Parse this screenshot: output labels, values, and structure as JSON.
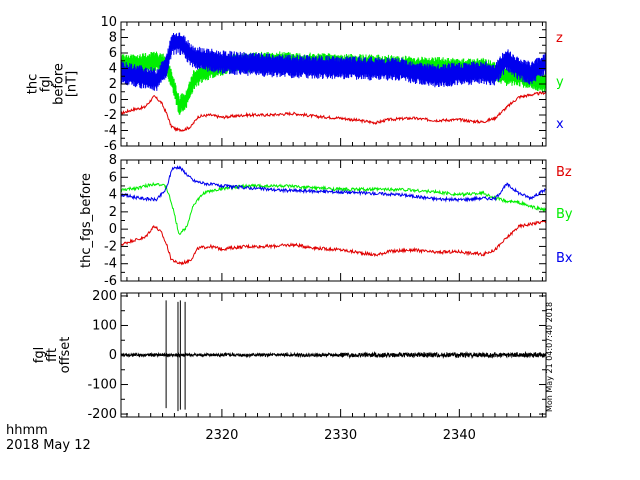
{
  "footer": {
    "line1": "hhmm",
    "line2": "2018 May 12"
  },
  "timestamp": "Mon May 21 04:07:40 2018",
  "colors": {
    "red": "#e00000",
    "green": "#00ee00",
    "blue": "#0000ee",
    "black": "#000000"
  },
  "chart_data": [
    {
      "type": "line",
      "ylabel_lines": [
        "thc",
        "fgl",
        "before",
        "[nT]"
      ],
      "ylim": [
        -6,
        10
      ],
      "yticks": [
        -6,
        -4,
        -2,
        0,
        2,
        4,
        6,
        8,
        10
      ],
      "xlim": [
        2311.5,
        2347.3
      ],
      "xticks": [
        2320,
        2330,
        2340
      ],
      "series": [
        {
          "name": "z",
          "color": "#e00000",
          "x": [
            2311.5,
            2312.5,
            2313.5,
            2314.3,
            2314.9,
            2315.4,
            2315.7,
            2316.2,
            2316.8,
            2317.4,
            2318,
            2319,
            2320,
            2322,
            2324,
            2326,
            2328,
            2330,
            2331.5,
            2333,
            2334,
            2336,
            2338,
            2340,
            2341,
            2342,
            2343,
            2344,
            2345,
            2346,
            2347.3
          ],
          "y": [
            -1.8,
            -1.3,
            -1.0,
            0.4,
            -0.4,
            -2.0,
            -3.4,
            -3.9,
            -3.9,
            -3.5,
            -2.2,
            -2.0,
            -2.3,
            -2.0,
            -2.0,
            -1.8,
            -2.2,
            -2.4,
            -2.7,
            -3.0,
            -2.6,
            -2.4,
            -2.7,
            -2.6,
            -2.8,
            -2.9,
            -2.4,
            -1.0,
            0.3,
            0.6,
            0.9
          ]
        },
        {
          "name": "y",
          "color": "#00ee00",
          "x": [
            2311.5,
            2313,
            2314.5,
            2315.3,
            2315.8,
            2316.4,
            2317,
            2317.6,
            2318.5,
            2320,
            2322,
            2325,
            2330,
            2335,
            2338,
            2340,
            2342,
            2343,
            2344,
            2345,
            2346,
            2347.3
          ],
          "y": [
            4.5,
            4.6,
            4.9,
            4.5,
            2.5,
            -0.8,
            0.0,
            2.5,
            3.6,
            4.4,
            4.8,
            4.9,
            4.6,
            4.4,
            4.2,
            4.0,
            4.1,
            3.6,
            3.0,
            3.0,
            2.6,
            2.2
          ],
          "band": 1.2
        },
        {
          "name": "x",
          "color": "#0000ee",
          "x": [
            2311.5,
            2313,
            2314.5,
            2315.3,
            2315.8,
            2316.4,
            2317,
            2317.6,
            2318.5,
            2320,
            2322,
            2325,
            2330,
            2335,
            2338,
            2340,
            2342,
            2343,
            2344,
            2345,
            2346,
            2347.3
          ],
          "y": [
            3.4,
            3.0,
            2.5,
            4.2,
            7.2,
            7.4,
            6.5,
            5.5,
            5.2,
            4.8,
            4.6,
            4.3,
            4.1,
            3.9,
            3.0,
            3.3,
            3.5,
            3.2,
            5.2,
            4.0,
            3.4,
            4.6
          ],
          "band": 1.4
        }
      ]
    },
    {
      "type": "line",
      "ylabel": "thc_fgs_before",
      "ylim": [
        -6,
        8
      ],
      "yticks": [
        -6,
        -4,
        -2,
        0,
        2,
        4,
        6,
        8
      ],
      "xlim": [
        2311.5,
        2347.3
      ],
      "xticks": [
        2320,
        2330,
        2340
      ],
      "series": [
        {
          "name": "Bz",
          "color": "#e00000",
          "x": [
            2311.5,
            2312.5,
            2313.5,
            2314.3,
            2314.9,
            2315.4,
            2315.7,
            2316.2,
            2316.8,
            2317.4,
            2318,
            2319,
            2320,
            2322,
            2324,
            2326,
            2328,
            2330,
            2331.5,
            2333,
            2334,
            2336,
            2338,
            2340,
            2341,
            2342,
            2343,
            2344,
            2345,
            2346,
            2347.3
          ],
          "y": [
            -1.8,
            -1.3,
            -1.0,
            0.4,
            -0.4,
            -2.0,
            -3.4,
            -3.9,
            -3.9,
            -3.5,
            -2.2,
            -2.0,
            -2.3,
            -2.0,
            -2.0,
            -1.8,
            -2.2,
            -2.4,
            -2.7,
            -3.0,
            -2.6,
            -2.4,
            -2.7,
            -2.6,
            -2.8,
            -2.9,
            -2.4,
            -1.0,
            0.3,
            0.6,
            0.9
          ]
        },
        {
          "name": "By",
          "color": "#00ee00",
          "x": [
            2311.5,
            2313,
            2314.5,
            2315.3,
            2315.8,
            2316.4,
            2317,
            2317.6,
            2318.5,
            2320,
            2322,
            2325,
            2330,
            2335,
            2338,
            2340,
            2342,
            2343,
            2344,
            2345,
            2346,
            2347.3
          ],
          "y": [
            4.5,
            4.8,
            5.3,
            4.9,
            2.8,
            -0.6,
            0.2,
            2.8,
            4.2,
            4.7,
            5.0,
            5.0,
            4.6,
            4.6,
            4.3,
            4.0,
            4.2,
            3.6,
            3.2,
            3.1,
            2.6,
            2.2
          ]
        },
        {
          "name": "Bx",
          "color": "#0000ee",
          "x": [
            2311.5,
            2313,
            2314.5,
            2315.3,
            2315.8,
            2316.4,
            2317,
            2317.6,
            2318.5,
            2320,
            2322,
            2325,
            2330,
            2335,
            2338,
            2340,
            2342,
            2343,
            2344,
            2345,
            2346,
            2347.3
          ],
          "y": [
            4.0,
            3.6,
            3.4,
            4.6,
            7.0,
            7.2,
            6.4,
            5.6,
            5.3,
            5.0,
            4.8,
            4.5,
            4.3,
            4.0,
            3.5,
            3.4,
            3.6,
            3.5,
            5.2,
            4.2,
            3.6,
            4.6
          ]
        }
      ]
    },
    {
      "type": "line",
      "ylabel_lines": [
        "fgl",
        "fft",
        "offset"
      ],
      "ylim": [
        -210,
        210
      ],
      "yticks": [
        -200,
        -100,
        0,
        100,
        200
      ],
      "xlim": [
        2311.5,
        2347.3
      ],
      "xticks": [
        2320,
        2330,
        2340
      ],
      "xticklabels": [
        "2320",
        "2330",
        "2340"
      ],
      "series": [
        {
          "name": "",
          "color": "#000000",
          "noise_segments": [
            [
              2311.5,
              2330,
              5
            ],
            [
              2330,
              2347.3,
              8
            ]
          ],
          "spikes": [
            [
              2315.3,
              185,
              -180
            ],
            [
              2316.3,
              180,
              -190
            ],
            [
              2316.5,
              185,
              -185
            ],
            [
              2316.9,
              180,
              -185
            ]
          ]
        }
      ]
    }
  ]
}
